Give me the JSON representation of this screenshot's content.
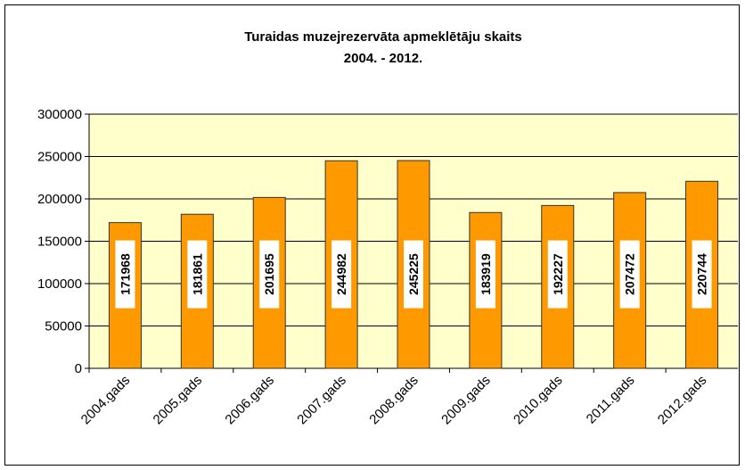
{
  "chart_data": {
    "type": "bar",
    "title": "Turaidas muzejrezervāta apmeklētāju skaits",
    "subtitle": "2004. - 2012.",
    "categories": [
      "2004.gads",
      "2005.gads",
      "2006.gads",
      "2007.gads",
      "2008.gads",
      "2009.gads",
      "2010.gads",
      "2011.gads",
      "2012.gads"
    ],
    "values": [
      171968,
      181861,
      201695,
      244982,
      245225,
      183919,
      192227,
      207472,
      220744
    ],
    "color": "#ff9900",
    "ylim": [
      0,
      300000
    ],
    "yticks": [
      0,
      50000,
      100000,
      150000,
      200000,
      250000,
      300000
    ],
    "grid": true
  }
}
